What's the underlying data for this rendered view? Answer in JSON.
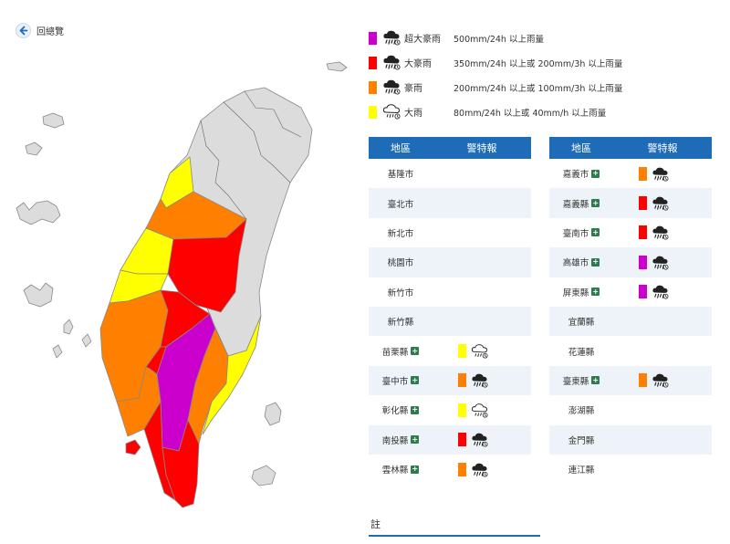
{
  "nav": {
    "back_label": "回總覽"
  },
  "colors": {
    "extreme_torrential": "#cc00cc",
    "torrential": "#ff0000",
    "extremely_heavy": "#ff8000",
    "heavy": "#ffff00",
    "none": "#dcdcdc",
    "header": "#1e6bb8"
  },
  "legend": [
    {
      "level": "extreme_torrential",
      "name": "超大豪雨",
      "desc": "500mm/24h 以上雨量",
      "icon": "heavy-rain-cloud-icon"
    },
    {
      "level": "torrential",
      "name": "大豪雨",
      "desc": "350mm/24h 以上或 200mm/3h 以上雨量",
      "icon": "heavy-rain-cloud-icon"
    },
    {
      "level": "extremely_heavy",
      "name": "豪雨",
      "desc": "200mm/24h 以上或 100mm/3h 以上雨量",
      "icon": "heavy-rain-cloud-icon"
    },
    {
      "level": "heavy",
      "name": "大雨",
      "desc": "80mm/24h 以上或 40mm/h 以上雨量",
      "icon": "rain-cloud-icon"
    }
  ],
  "table": {
    "col_area": "地區",
    "col_warning": "警特報",
    "left": [
      {
        "area": "基隆市",
        "level": null,
        "expand": false
      },
      {
        "area": "臺北市",
        "level": null,
        "expand": false
      },
      {
        "area": "新北市",
        "level": null,
        "expand": false
      },
      {
        "area": "桃園市",
        "level": null,
        "expand": false
      },
      {
        "area": "新竹市",
        "level": null,
        "expand": false
      },
      {
        "area": "新竹縣",
        "level": null,
        "expand": false
      },
      {
        "area": "苗栗縣",
        "level": "heavy",
        "expand": true
      },
      {
        "area": "臺中市",
        "level": "extremely_heavy",
        "expand": true
      },
      {
        "area": "彰化縣",
        "level": "heavy",
        "expand": true
      },
      {
        "area": "南投縣",
        "level": "torrential",
        "expand": true
      },
      {
        "area": "雲林縣",
        "level": "extremely_heavy",
        "expand": true
      }
    ],
    "right": [
      {
        "area": "嘉義市",
        "level": "extremely_heavy",
        "expand": true
      },
      {
        "area": "嘉義縣",
        "level": "torrential",
        "expand": true
      },
      {
        "area": "臺南市",
        "level": "torrential",
        "expand": true
      },
      {
        "area": "高雄市",
        "level": "extreme_torrential",
        "expand": true
      },
      {
        "area": "屏東縣",
        "level": "extreme_torrential",
        "expand": true
      },
      {
        "area": "宜蘭縣",
        "level": null,
        "expand": false
      },
      {
        "area": "花蓮縣",
        "level": null,
        "expand": false
      },
      {
        "area": "臺東縣",
        "level": "extremely_heavy",
        "expand": true
      },
      {
        "area": "澎湖縣",
        "level": null,
        "expand": false
      },
      {
        "area": "金門縣",
        "level": null,
        "expand": false
      },
      {
        "area": "連江縣",
        "level": null,
        "expand": false
      }
    ]
  },
  "note": {
    "label": "註"
  }
}
